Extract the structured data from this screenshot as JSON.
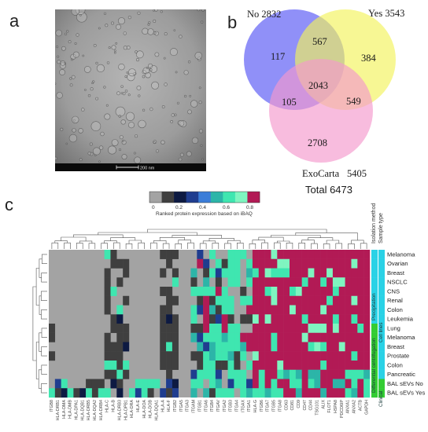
{
  "panels": {
    "a": "a",
    "b": "b",
    "c": "c"
  },
  "scale_bar": "200 nm",
  "venn": {
    "sets": [
      {
        "label": "No 2832",
        "color": "#6b6bf5"
      },
      {
        "label": "Yes 3543",
        "color": "#f3f35a"
      },
      {
        "label": "ExoCarta",
        "color": "#f598cd"
      }
    ],
    "exocarta_total": "5405",
    "regions": {
      "no_only": "117",
      "yes_only": "384",
      "exo_only": "2708",
      "no_yes": "567",
      "no_exo": "105",
      "yes_exo": "549",
      "all": "2043"
    },
    "total": "Total 6473"
  },
  "heatmap": {
    "colorbar_title": "Ranked protein expression based on iBAQ",
    "colorbar_ticks": [
      "0",
      "0.2",
      "0.4",
      "0.6",
      "0.8"
    ],
    "colorbar_colors": [
      "#a3a3a3",
      "#3f3f3f",
      "#0d1a42",
      "#1f3d8f",
      "#3b7dd8",
      "#2cb5a8",
      "#3fe6b0",
      "#7ff5c0",
      "#b21a55"
    ],
    "annotation_headers": [
      "Isolation method",
      "Sample type"
    ],
    "rows": [
      {
        "label": "Melanoma",
        "method": "Precipitation",
        "type": "Cell lines"
      },
      {
        "label": "Ovarian",
        "method": "Precipitation",
        "type": "Cell lines"
      },
      {
        "label": "Breast",
        "method": "Precipitation",
        "type": "Cell lines"
      },
      {
        "label": "NSCLC",
        "method": "Precipitation",
        "type": "Cell lines"
      },
      {
        "label": "CNS",
        "method": "Precipitation",
        "type": "Cell lines"
      },
      {
        "label": "Renal",
        "method": "Precipitation",
        "type": "Cell lines"
      },
      {
        "label": "Colon",
        "method": "Precipitation",
        "type": "Cell lines"
      },
      {
        "label": "Leukemia",
        "method": "Precipitation",
        "type": "Cell lines"
      },
      {
        "label": "Lung",
        "method": "Differential centrifugation",
        "type": "Cell lines"
      },
      {
        "label": "Melanoma",
        "method": "Differential centrifugation",
        "type": "Cell lines"
      },
      {
        "label": "Breast",
        "method": "Differential centrifugation",
        "type": "Cell lines"
      },
      {
        "label": "Prostate",
        "method": "Differential centrifugation",
        "type": "Cell lines"
      },
      {
        "label": "Colon",
        "method": "Differential centrifugation",
        "type": "Cell lines"
      },
      {
        "label": "Pancreatic",
        "method": "Differential centrifugation",
        "type": "Cell lines"
      },
      {
        "label": "BAL sEVs No",
        "method": "Differential centrifugation",
        "type": "Clinical"
      },
      {
        "label": "BAL sEVs Yes",
        "method": "Differential centrifugation",
        "type": "Clinical"
      }
    ],
    "method_colors": {
      "Precipitation": "#2ad2e6",
      "Differential centrifugation": "#33cc33"
    },
    "type_colors": {
      "Cell lines": "#2ad2e6",
      "Clinical": "#33cc33"
    },
    "method_labels": {
      "precipitation": "Precipitation",
      "differential": "Differential centrifugation"
    },
    "type_labels": {
      "cell_lines": "Cell lines",
      "clinical": "Clinical"
    },
    "columns": [
      "ITGB8",
      "HLA-DRB1",
      "HLA-DMA",
      "HLA-DMB",
      "HLA-DPA1",
      "HLA-DQB1",
      "HLA-DRB5",
      "HLA-DQA2",
      "HLA-DRB4",
      "HLA-C",
      "HLA-B",
      "HLA-DRB3",
      "HLA-DPB1",
      "HLA-DRA",
      "HLA-E",
      "HLA-DOA",
      "HLA-DOB",
      "HLA-DQA1",
      "HLA-A",
      "HLA-F",
      "ITGB2",
      "ITGA5",
      "ITGA3",
      "ITGAM",
      "ITGB1",
      "ITGA6",
      "ITGB4",
      "ITGAV",
      "ITGA2",
      "ITGB3",
      "ITGA4",
      "ITGAX",
      "ITGA1",
      "HLA-G",
      "ITGB6",
      "ITGA7",
      "ITGB5",
      "ITGA8",
      "CD63",
      "CD81",
      "CD9",
      "CD47",
      "CD44",
      "TSG101",
      "ALIX",
      "FLOT1",
      "HSPA8",
      "PDCD6IP",
      "ANXA1",
      "ANXA2",
      "ACTB",
      "GAPDH"
    ],
    "column_highlight": [
      "ITGB8",
      "ITGB2",
      "ITGA6",
      "ITGB6",
      "CD44",
      "TSG101"
    ]
  }
}
